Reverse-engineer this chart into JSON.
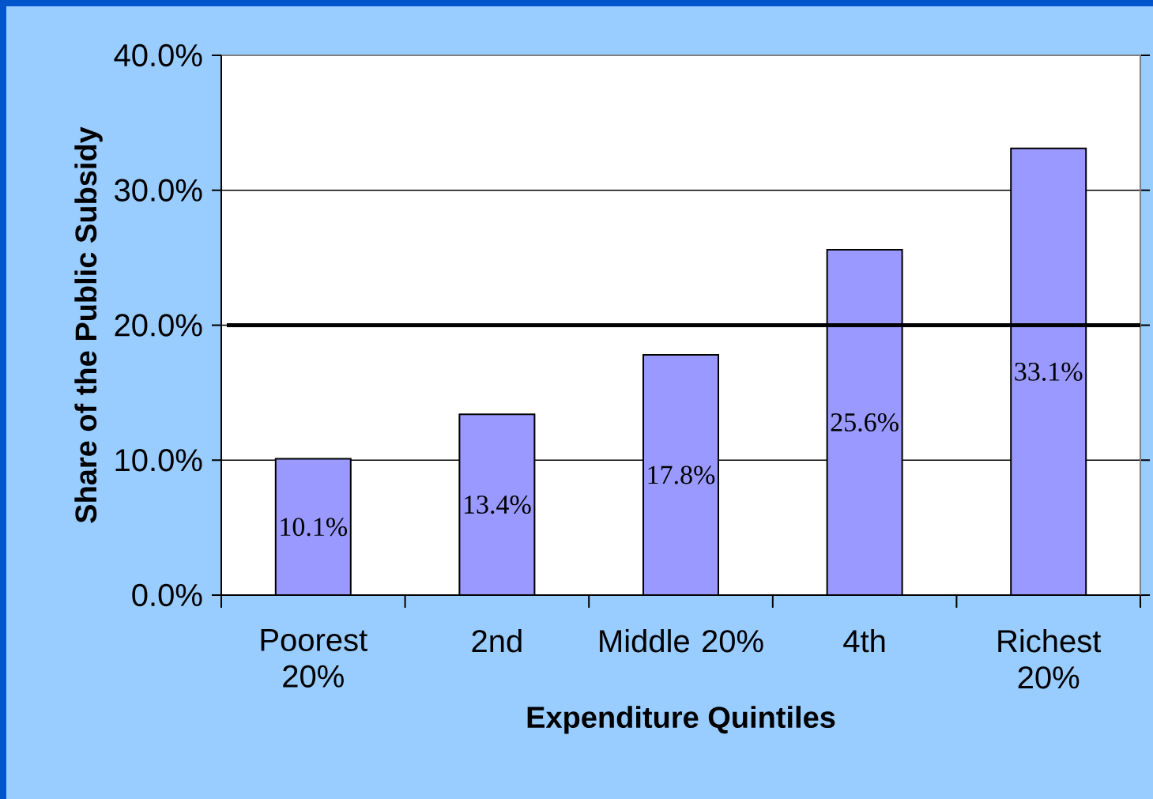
{
  "chart_data": {
    "type": "bar",
    "xlabel": "Expenditure Quintiles",
    "ylabel": "Share of the Public Subsidy",
    "categories": [
      "Poorest 20%",
      "2nd",
      "Middle 20%",
      "4th",
      "Richest 20%"
    ],
    "values": [
      10.1,
      13.4,
      17.8,
      25.6,
      33.1
    ],
    "color": "#9999ff",
    "value_labels": [
      "10.1%",
      "13.4%",
      "17.8%",
      "25.6%",
      "33.1%"
    ],
    "ylim": [
      0,
      40
    ],
    "yticks": [
      {
        "value": 0,
        "label": "0.0%"
      },
      {
        "value": 10,
        "label": "10.0%"
      },
      {
        "value": 20,
        "label": "20.0%"
      },
      {
        "value": 30,
        "label": "30.0%"
      },
      {
        "value": 40,
        "label": "40.0%"
      }
    ],
    "grid": "y",
    "ref_lines": [
      {
        "axis": "y",
        "value": 20,
        "color": "#000000"
      }
    ]
  }
}
